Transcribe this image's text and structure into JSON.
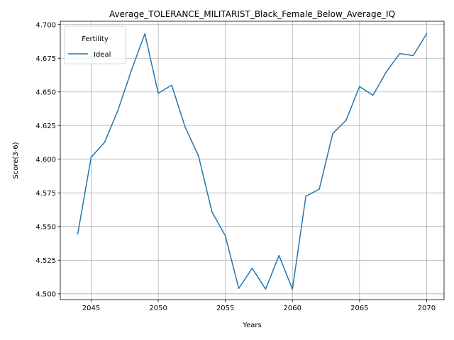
{
  "chart_data": {
    "type": "line",
    "title": "Average_TOLERANCE_MILITARIST_Black_Female_Below_Average_IQ",
    "xlabel": "Years",
    "ylabel": "Score(3-6)",
    "xlim": [
      2042.7,
      2071.3
    ],
    "ylim": [
      4.4957,
      4.7025
    ],
    "x_ticks": [
      2045,
      2050,
      2055,
      2060,
      2065,
      2070
    ],
    "x_tick_labels": [
      "2045",
      "2050",
      "2055",
      "2060",
      "2065",
      "2070"
    ],
    "y_ticks": [
      4.5,
      4.525,
      4.55,
      4.575,
      4.6,
      4.625,
      4.65,
      4.675,
      4.7
    ],
    "y_tick_labels": [
      "4.500",
      "4.525",
      "4.550",
      "4.575",
      "4.600",
      "4.625",
      "4.650",
      "4.675",
      "4.700"
    ],
    "grid": true,
    "legend": {
      "title": "Fertility",
      "placement": "upper-left"
    },
    "series": [
      {
        "name": "Ideal",
        "color": "#1f77b4",
        "x": [
          2044,
          2045,
          2046,
          2047,
          2048,
          2049,
          2050,
          2051,
          2052,
          2053,
          2054,
          2055,
          2056,
          2057,
          2058,
          2059,
          2060,
          2061,
          2062,
          2063,
          2064,
          2065,
          2066,
          2067,
          2068,
          2069,
          2070
        ],
        "values": [
          4.5445,
          4.6015,
          4.6125,
          4.6365,
          4.666,
          4.6932,
          4.649,
          4.655,
          4.624,
          4.6025,
          4.561,
          4.543,
          4.504,
          4.519,
          4.5035,
          4.5285,
          4.5035,
          4.5725,
          4.5778,
          4.619,
          4.629,
          4.654,
          4.6475,
          4.665,
          4.6785,
          4.677,
          4.6932
        ]
      }
    ]
  }
}
